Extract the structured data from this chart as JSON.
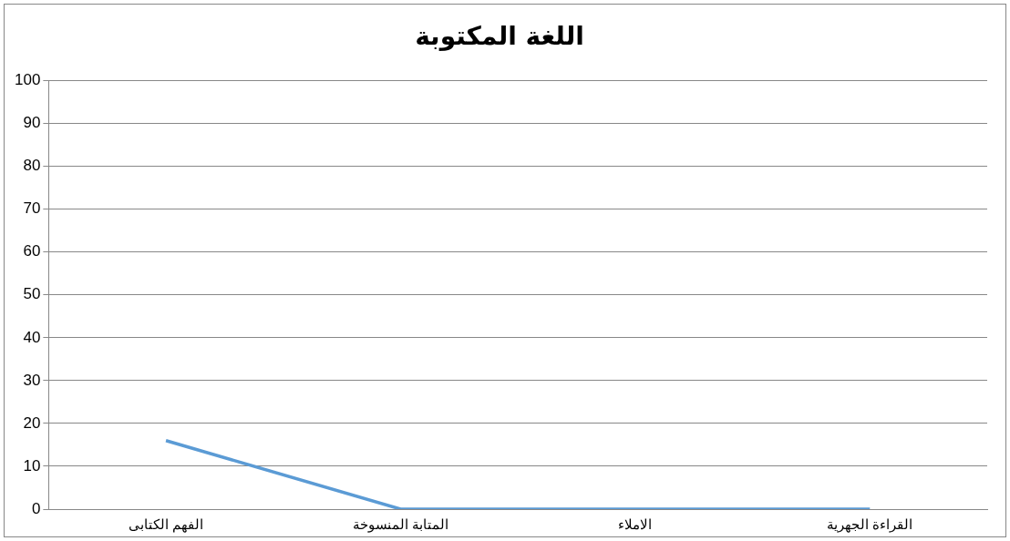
{
  "chart_data": {
    "type": "line",
    "title": "اللغة المكتوبة",
    "categories": [
      "الفهم الكتابى",
      "المتابة المنسوخة",
      "الاملاء",
      "القراءة الجهرية"
    ],
    "series": [
      {
        "color": "#5b9bd5",
        "values": [
          16,
          0,
          0,
          0
        ]
      }
    ],
    "ylim": [
      0,
      100
    ],
    "yticks": [
      0,
      10,
      20,
      30,
      40,
      50,
      60,
      70,
      80,
      90,
      100
    ],
    "grid": "y",
    "legend": false,
    "marker": "none"
  }
}
